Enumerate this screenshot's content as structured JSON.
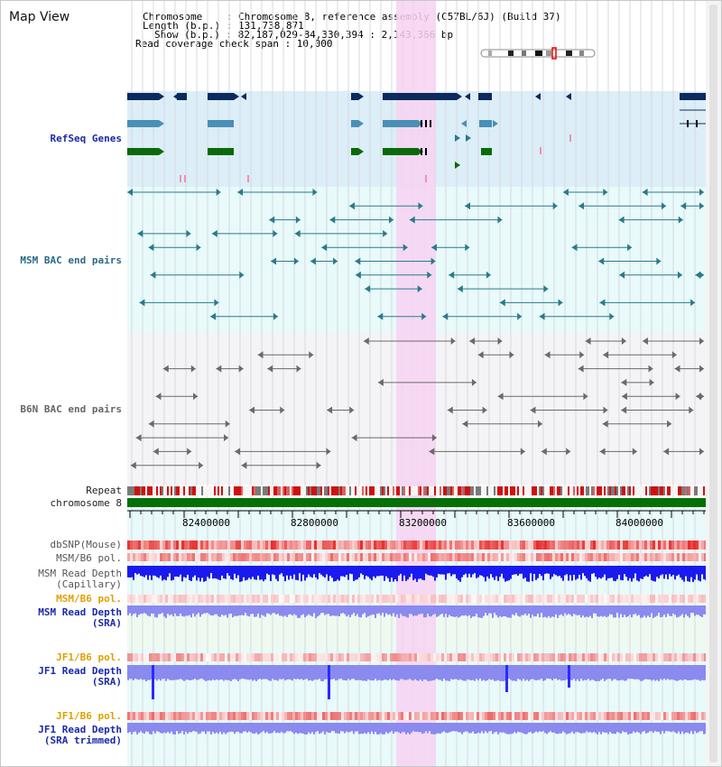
{
  "page": {
    "title": "Map View"
  },
  "info": {
    "chromosome": "Chromosome    : Chromosome 8, reference assembly (C57BL/6J) (Build 37)",
    "length": "Length (b.p.) : 131,738,871",
    "show": "Show (b.p.) : 82,187,029-84,330,394 : 2,143,366 bp",
    "coverage": "Read coverage check span : 10,000"
  },
  "tracks": {
    "refseq": "RefSeq Genes",
    "msm_bac": "MSM BAC end pairs",
    "b6n_bac": "B6N BAC end pairs",
    "repeat": "Repeat",
    "chromosome": "chromosome 8",
    "dbsnp": "dbSNP(Mouse)",
    "msm_b6_pol_1": "MSM/B6 pol.",
    "msm_read_depth_cap_1": "MSM Read Depth",
    "msm_read_depth_cap_2": "(Capillary)",
    "msm_b6_pol_2": "MSM/B6 pol.",
    "msm_read_depth_sra_1": "MSM Read Depth",
    "msm_read_depth_sra_2": "(SRA)",
    "jf1_b6_pol_1": "JF1/B6 pol.",
    "jf1_read_depth_sra_1": "JF1 Read Depth",
    "jf1_read_depth_sra_2": "(SRA)",
    "jf1_b6_pol_2": "JF1/B6 pol.",
    "jf1_read_depth_trim_1": "JF1 Read Depth",
    "jf1_read_depth_trim_2": "(SRA trimmed)"
  },
  "axis": {
    "ticks": [
      "82400000",
      "82800000",
      "83200000",
      "83600000",
      "84000000"
    ]
  },
  "colors": {
    "refseq_bg": "#dceef8",
    "msm_bg": "#e8fafa",
    "highlight": "#f7d2f2",
    "navy": "#0b2a5e",
    "steel": "#4a8fb6",
    "green": "#0a6a0a",
    "teal": "#2a7a8c",
    "gray": "#6a6a6a",
    "blue_depth": "#1a1aef",
    "lilac_depth": "#8a8aef",
    "label_blue": "#1a2aa8",
    "label_teal": "#2a6a88",
    "label_gray": "#666666",
    "label_orange": "#e0a000"
  }
}
